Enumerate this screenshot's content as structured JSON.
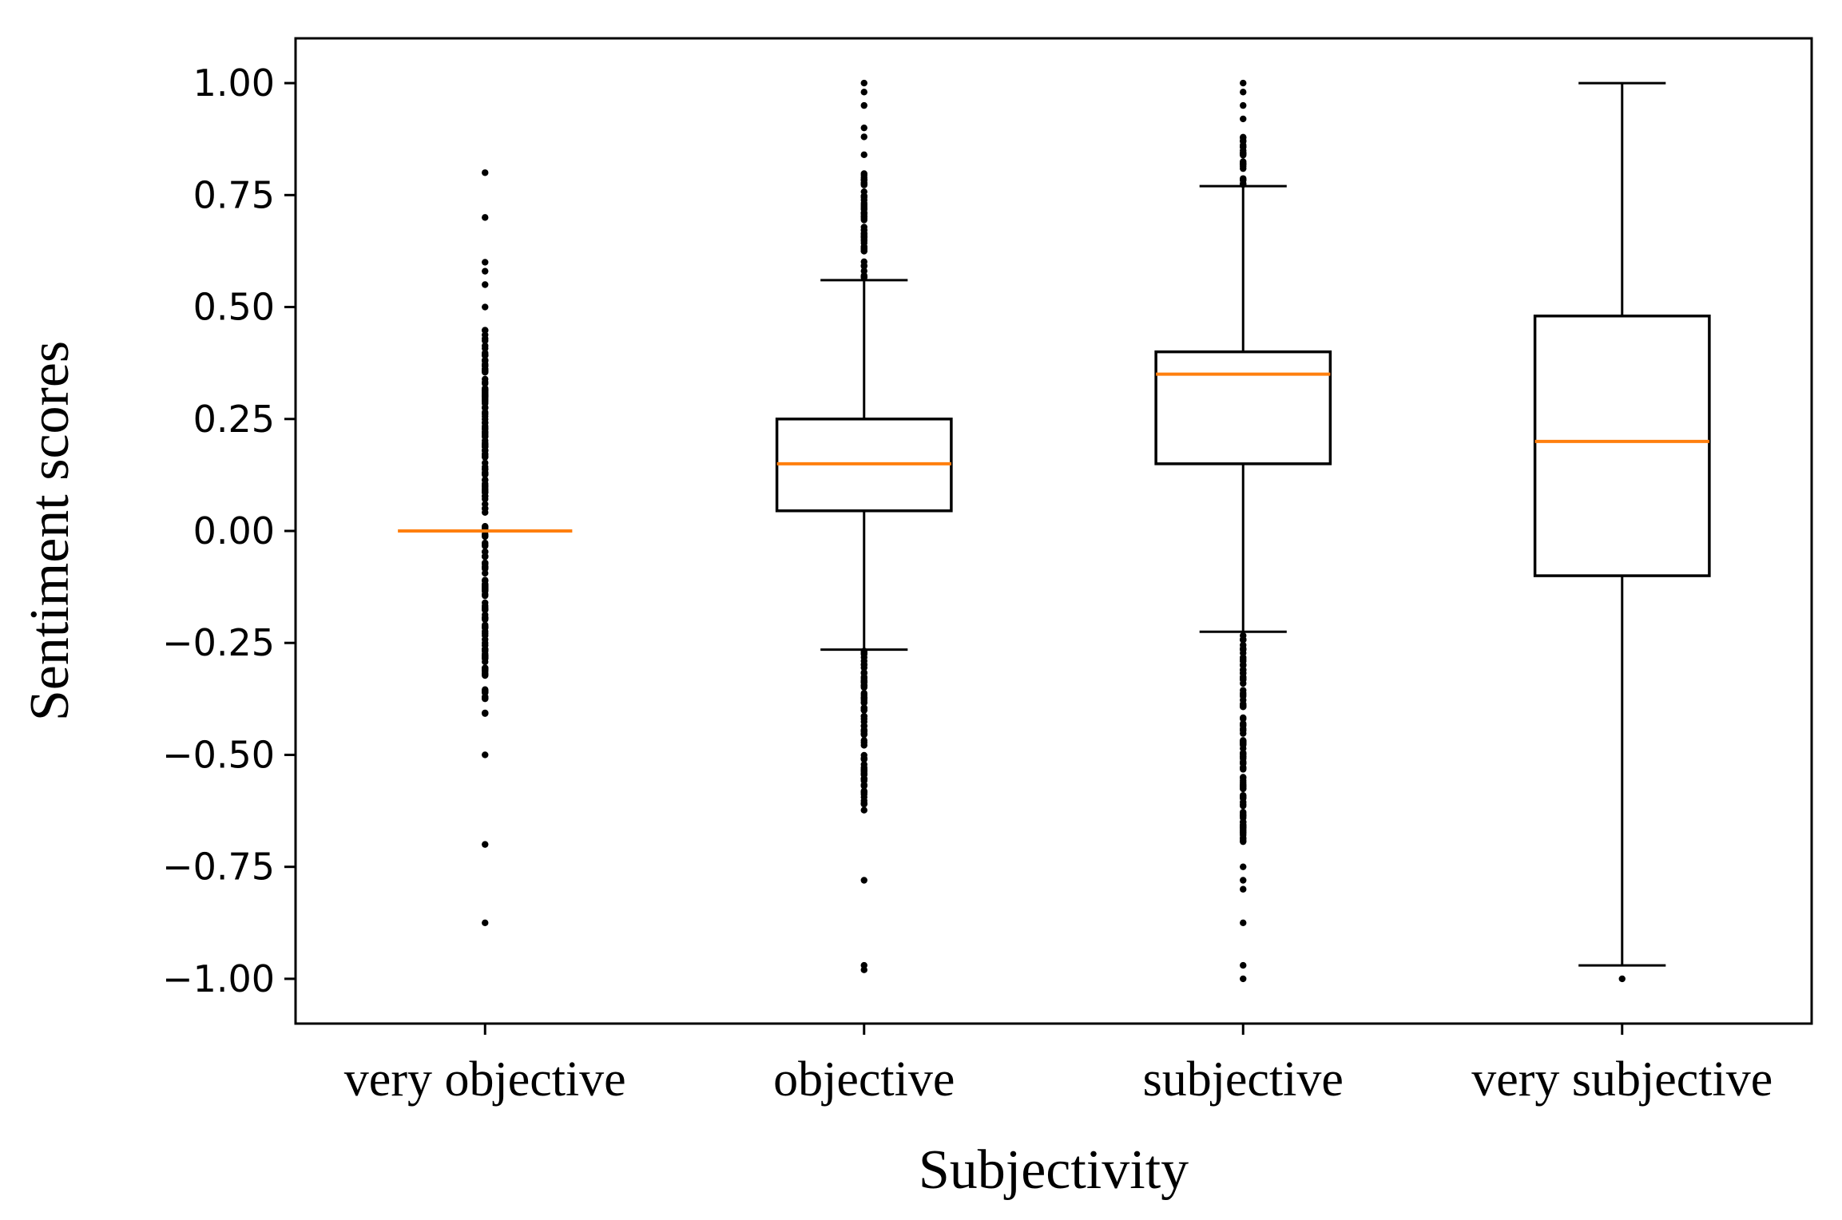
{
  "chart_data": {
    "type": "boxplot",
    "title": "",
    "xlabel": "Subjectivity",
    "ylabel": "Sentiment scores",
    "ylim": [
      -1.1,
      1.1
    ],
    "yticks": [
      1.0,
      0.75,
      0.5,
      0.25,
      0.0,
      -0.25,
      -0.5,
      -0.75,
      -1.0
    ],
    "ytick_labels": [
      "1.00",
      "0.75",
      "0.50",
      "0.25",
      "0.00",
      "−0.25",
      "−0.50",
      "−0.75",
      "−1.00"
    ],
    "categories": [
      "very objective",
      "objective",
      "subjective",
      "very subjective"
    ],
    "median_color": "#ff7f0e",
    "box_color": "#000000",
    "series": [
      {
        "name": "very objective",
        "q1": 0.0,
        "median": 0.0,
        "q3": 0.0,
        "whisker_low": 0.0,
        "whisker_high": 0.0,
        "outliers_high_range": [
          0.0,
          0.45
        ],
        "outliers_low_range": [
          -0.41,
          0.0
        ],
        "outliers_extra": [
          0.8,
          0.7,
          0.6,
          0.58,
          0.55,
          0.5,
          -0.5,
          -0.7,
          -0.875
        ]
      },
      {
        "name": "objective",
        "q1": 0.045,
        "median": 0.15,
        "q3": 0.25,
        "whisker_low": -0.265,
        "whisker_high": 0.56,
        "outliers_high_range": [
          0.56,
          0.8
        ],
        "outliers_low_range": [
          -0.625,
          -0.265
        ],
        "outliers_extra": [
          1.0,
          0.98,
          0.95,
          0.9,
          0.88,
          0.84,
          -0.78,
          -0.97,
          -0.98
        ]
      },
      {
        "name": "subjective",
        "q1": 0.15,
        "median": 0.35,
        "q3": 0.4,
        "whisker_low": -0.225,
        "whisker_high": 0.77,
        "outliers_high_range": [
          0.77,
          0.88
        ],
        "outliers_low_range": [
          -0.7,
          -0.225
        ],
        "outliers_extra": [
          1.0,
          0.98,
          0.95,
          0.92,
          -0.75,
          -0.78,
          -0.8,
          -0.875,
          -0.97,
          -1.0
        ]
      },
      {
        "name": "very subjective",
        "q1": -0.1,
        "median": 0.2,
        "q3": 0.48,
        "whisker_low": -0.97,
        "whisker_high": 1.0,
        "outliers_high_range": null,
        "outliers_low_range": null,
        "outliers_extra": [
          -1.0
        ]
      }
    ]
  }
}
